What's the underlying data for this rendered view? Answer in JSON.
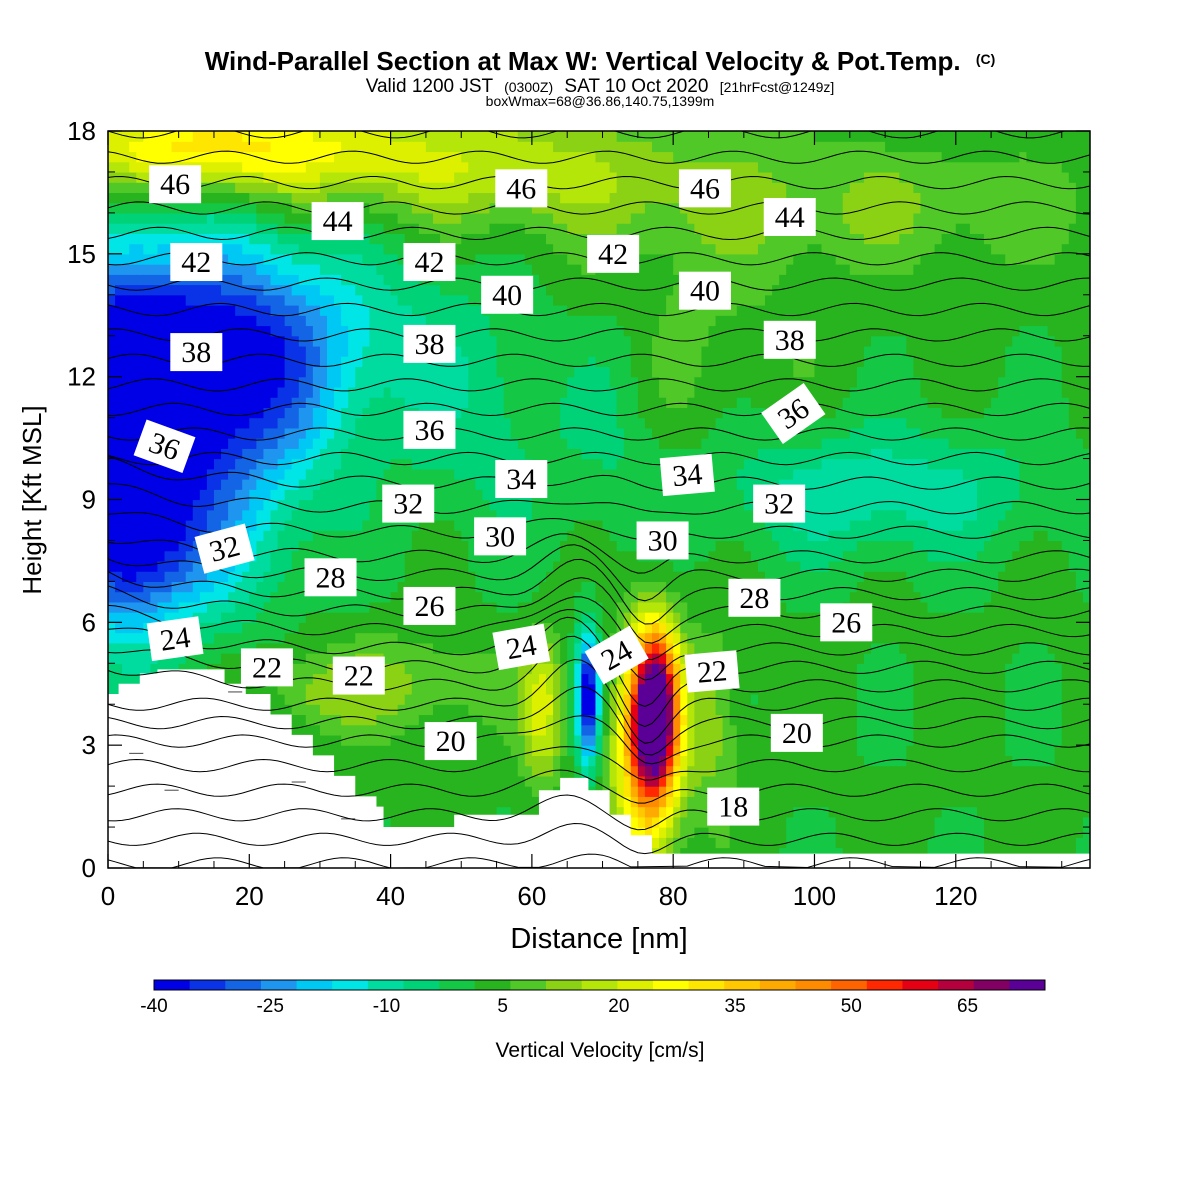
{
  "chart_data": {
    "type": "heatmap",
    "title": "Wind-Parallel Section at Max W: Vertical Velocity & Pot.Temp.",
    "title_unit": "(C)",
    "subtitle_parts": [
      "Valid 1200 JST",
      "(0300Z)",
      "SAT 10 Oct 2020",
      "[21hrFcst@1249z]"
    ],
    "subtitle2": "boxWmax=68@36.86,140.75,1399m",
    "xlabel": "Distance [nm]",
    "ylabel": "Height [Kft MSL]",
    "xlim": [
      0,
      139
    ],
    "ylim": [
      0,
      18
    ],
    "x_ticks": [
      0,
      20,
      40,
      60,
      80,
      100,
      120
    ],
    "y_ticks": [
      0,
      3,
      6,
      9,
      12,
      15,
      18
    ],
    "x_tick_labels": [
      "0",
      "20",
      "40",
      "60",
      "80",
      "100",
      "120"
    ],
    "y_tick_labels": [
      "0",
      "3",
      "6",
      "9",
      "12",
      "15",
      "18"
    ],
    "colorbar": {
      "label": "Vertical Velocity [cm/s]",
      "min": -40,
      "max": 75,
      "step": 5,
      "tick_labels": [
        "-40",
        "-25",
        "-10",
        "5",
        "20",
        "35",
        "50",
        "65"
      ],
      "tick_values": [
        -40,
        -25,
        -10,
        5,
        20,
        35,
        50,
        65
      ],
      "colors": [
        "#0000e6",
        "#0a32e6",
        "#1464e6",
        "#1e96f0",
        "#00c8f5",
        "#00e6e6",
        "#00dca0",
        "#00d278",
        "#14c846",
        "#28b41e",
        "#50c828",
        "#8cd214",
        "#b4e60a",
        "#dcf000",
        "#ffff00",
        "#ffe600",
        "#ffc800",
        "#ffaa00",
        "#ff8c00",
        "#ff6400",
        "#ff2800",
        "#e60014",
        "#b4003c",
        "#820064",
        "#5a0096"
      ]
    },
    "isentrope_labels": [
      {
        "value": "46",
        "x": 9.5,
        "y": 16.7,
        "angle": 0
      },
      {
        "value": "46",
        "x": 58.5,
        "y": 16.6,
        "angle": 0
      },
      {
        "value": "46",
        "x": 84.5,
        "y": 16.6,
        "angle": 0
      },
      {
        "value": "44",
        "x": 32.5,
        "y": 15.8,
        "angle": 0
      },
      {
        "value": "44",
        "x": 96.5,
        "y": 15.9,
        "angle": 0
      },
      {
        "value": "42",
        "x": 12.5,
        "y": 14.8,
        "angle": 0
      },
      {
        "value": "42",
        "x": 45.5,
        "y": 14.8,
        "angle": 0
      },
      {
        "value": "42",
        "x": 71.5,
        "y": 15.0,
        "angle": 0
      },
      {
        "value": "40",
        "x": 56.5,
        "y": 14.0,
        "angle": 0
      },
      {
        "value": "40",
        "x": 84.5,
        "y": 14.1,
        "angle": 0
      },
      {
        "value": "38",
        "x": 12.5,
        "y": 12.6,
        "angle": 0
      },
      {
        "value": "38",
        "x": 45.5,
        "y": 12.8,
        "angle": 0
      },
      {
        "value": "38",
        "x": 96.5,
        "y": 12.9,
        "angle": 0
      },
      {
        "value": "36",
        "x": 8.0,
        "y": 10.3,
        "angle": 20
      },
      {
        "value": "36",
        "x": 45.5,
        "y": 10.7,
        "angle": 0
      },
      {
        "value": "36",
        "x": 97.0,
        "y": 11.1,
        "angle": -35
      },
      {
        "value": "34",
        "x": 58.5,
        "y": 9.5,
        "angle": 0
      },
      {
        "value": "34",
        "x": 82.0,
        "y": 9.6,
        "angle": -5
      },
      {
        "value": "32",
        "x": 42.5,
        "y": 8.9,
        "angle": 0
      },
      {
        "value": "32",
        "x": 95.0,
        "y": 8.9,
        "angle": 0
      },
      {
        "value": "32",
        "x": 16.5,
        "y": 7.8,
        "angle": -15
      },
      {
        "value": "30",
        "x": 55.5,
        "y": 8.1,
        "angle": 0
      },
      {
        "value": "30",
        "x": 78.5,
        "y": 8.0,
        "angle": 0
      },
      {
        "value": "28",
        "x": 31.5,
        "y": 7.1,
        "angle": 0
      },
      {
        "value": "28",
        "x": 91.5,
        "y": 6.6,
        "angle": 0
      },
      {
        "value": "26",
        "x": 45.5,
        "y": 6.4,
        "angle": 0
      },
      {
        "value": "26",
        "x": 104.5,
        "y": 6.0,
        "angle": 0
      },
      {
        "value": "24",
        "x": 9.5,
        "y": 5.6,
        "angle": -8
      },
      {
        "value": "24",
        "x": 58.5,
        "y": 5.4,
        "angle": -10
      },
      {
        "value": "24",
        "x": 72.0,
        "y": 5.2,
        "angle": -30
      },
      {
        "value": "22",
        "x": 22.5,
        "y": 4.9,
        "angle": 0
      },
      {
        "value": "22",
        "x": 35.5,
        "y": 4.7,
        "angle": 0
      },
      {
        "value": "22",
        "x": 85.5,
        "y": 4.8,
        "angle": -5
      },
      {
        "value": "20",
        "x": 48.5,
        "y": 3.1,
        "angle": 0
      },
      {
        "value": "20",
        "x": 97.5,
        "y": 3.3,
        "angle": 0
      },
      {
        "value": "18",
        "x": 88.5,
        "y": 1.5,
        "angle": 0
      }
    ]
  }
}
